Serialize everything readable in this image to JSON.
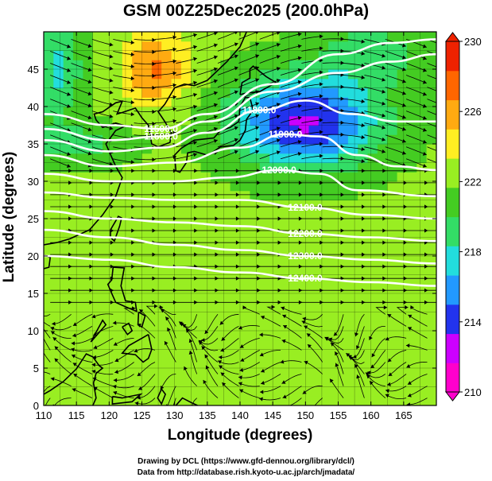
{
  "title": "GSM 00Z25Dec2025 (200.0hPa)",
  "xlabel": "Longitude (degrees)",
  "ylabel": "Latitude  (degrees)",
  "credits": [
    "Drawing by DCL (https://www.gfd-dennou.org/library/dcl/)",
    "Data from http://database.rish.kyoto-u.ac.jp/arch/jmadata/"
  ],
  "chart_data": {
    "type": "heatmap",
    "variable": "temperature (shaded), geopotential height (contours), wind (streamlines)",
    "xlim": [
      110,
      170
    ],
    "ylim": [
      0,
      50
    ],
    "x_ticks": [
      110,
      115,
      120,
      125,
      130,
      135,
      140,
      145,
      150,
      155,
      160,
      165
    ],
    "y_ticks": [
      0,
      5,
      10,
      15,
      20,
      25,
      30,
      35,
      40,
      45
    ],
    "colorbar": {
      "min": 210,
      "max": 230,
      "tick_labels": [
        210,
        214,
        218,
        222,
        226,
        230
      ],
      "colors": [
        "#ff00cc",
        "#cc00ff",
        "#2233ee",
        "#2299ff",
        "#22dddd",
        "#33dd66",
        "#44cc22",
        "#99ee22",
        "#ffee22",
        "#ffaa11",
        "#ff6600",
        "#ee2200"
      ]
    },
    "contours": [
      {
        "label": "11500.0",
        "value": 11500,
        "points": [
          [
            110,
            39
          ],
          [
            120,
            37.5
          ],
          [
            128,
            37
          ],
          [
            135,
            39
          ],
          [
            145,
            43
          ],
          [
            155,
            47
          ],
          [
            163,
            48.5
          ],
          [
            170,
            49
          ]
        ]
      },
      {
        "label": "11600.0",
        "value": 11600,
        "points": [
          [
            110,
            37
          ],
          [
            120,
            35.5
          ],
          [
            128,
            36
          ],
          [
            135,
            38
          ],
          [
            145,
            42
          ],
          [
            155,
            44.5
          ],
          [
            163,
            46
          ],
          [
            170,
            47
          ]
        ]
      },
      {
        "label": "11800.0",
        "value": 11800,
        "points": [
          [
            110,
            35.5
          ],
          [
            120,
            34
          ],
          [
            128,
            34.5
          ],
          [
            135,
            36.5
          ],
          [
            143,
            39.5
          ],
          [
            150,
            40.8
          ],
          [
            157,
            39
          ],
          [
            164,
            38
          ],
          [
            170,
            38
          ]
        ]
      },
      {
        "label": "11900.0",
        "value": 11900,
        "points": [
          [
            110,
            33.5
          ],
          [
            120,
            32
          ],
          [
            130,
            32.5
          ],
          [
            140,
            34.5
          ],
          [
            147,
            36.3
          ],
          [
            152,
            36
          ],
          [
            158,
            33.5
          ],
          [
            164,
            32
          ],
          [
            170,
            31.5
          ]
        ]
      },
      {
        "label": "12000.0",
        "value": 12000,
        "points": [
          [
            110,
            31
          ],
          [
            120,
            30
          ],
          [
            130,
            30
          ],
          [
            138,
            30.5
          ],
          [
            146,
            31.5
          ],
          [
            152,
            31
          ],
          [
            158,
            28.8
          ],
          [
            170,
            28
          ]
        ]
      },
      {
        "label": "12100.0",
        "value": 12100,
        "points": [
          [
            110,
            28.5
          ],
          [
            120,
            27.8
          ],
          [
            130,
            27.5
          ],
          [
            140,
            27.5
          ],
          [
            150,
            26.5
          ],
          [
            160,
            25.5
          ],
          [
            170,
            25
          ]
        ]
      },
      {
        "label": "12200.0",
        "value": 12200,
        "points": [
          [
            110,
            26
          ],
          [
            120,
            25
          ],
          [
            130,
            24.5
          ],
          [
            140,
            24
          ],
          [
            150,
            23
          ],
          [
            160,
            22.5
          ],
          [
            170,
            22
          ]
        ]
      },
      {
        "label": "12300.0",
        "value": 12300,
        "points": [
          [
            110,
            23.5
          ],
          [
            120,
            22.5
          ],
          [
            130,
            21.5
          ],
          [
            140,
            20.8
          ],
          [
            150,
            20
          ],
          [
            160,
            19.5
          ],
          [
            170,
            19
          ]
        ]
      },
      {
        "label": "12400.0",
        "value": 12400,
        "points": [
          [
            110,
            20
          ],
          [
            120,
            19.5
          ],
          [
            130,
            18.5
          ],
          [
            140,
            17.8
          ],
          [
            150,
            17
          ],
          [
            160,
            16.5
          ],
          [
            170,
            16
          ]
        ]
      }
    ]
  }
}
